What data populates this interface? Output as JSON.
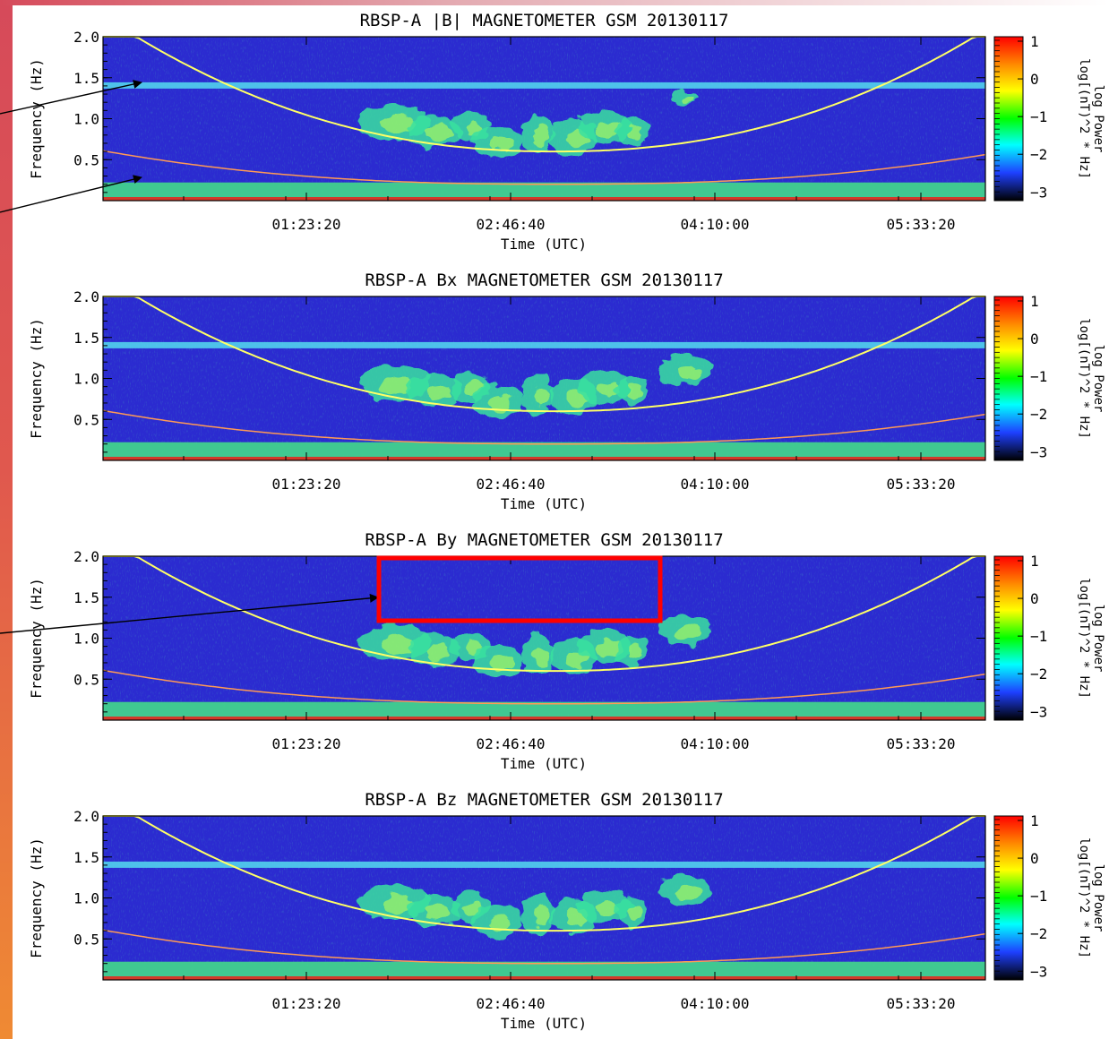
{
  "colors": {
    "background": "#2b2bd0",
    "model_curve_upper": "#ffff66",
    "model_curve_lower": "#ff9a55",
    "band_line": "#55dcef",
    "bottom_band": "#43d98a",
    "highlight_box": "#ff0000",
    "arrow": "#000000"
  },
  "colorbar": {
    "ticks": [
      "1",
      "0",
      "−1",
      "−2",
      "−3"
    ],
    "label": "log Power",
    "units": "log[(nT)^2 * Hz]",
    "stops": [
      "#ff0000",
      "#ff8a00",
      "#ffff00",
      "#00ff00",
      "#00ffff",
      "#1e40ff",
      "#000000"
    ]
  },
  "chart_data": [
    {
      "type": "heatmap",
      "title": "RBSP-A |B| MAGNETOMETER GSM 20130117",
      "xlabel": "Time (UTC)",
      "ylabel": "Frequency (Hz)",
      "x_ticks": [
        "01:23:20",
        "02:46:40",
        "04:10:00",
        "05:33:20"
      ],
      "y_ticks": [
        "2.0",
        "1.5",
        "1.0",
        "0.5"
      ],
      "ylim": [
        0,
        2.0
      ]
    },
    {
      "type": "heatmap",
      "title": "RBSP-A Bx MAGNETOMETER GSM 20130117",
      "xlabel": "Time (UTC)",
      "ylabel": "Frequency (Hz)",
      "x_ticks": [
        "01:23:20",
        "02:46:40",
        "04:10:00",
        "05:33:20"
      ],
      "y_ticks": [
        "2.0",
        "1.5",
        "1.0",
        "0.5"
      ],
      "ylim": [
        0,
        2.0
      ]
    },
    {
      "type": "heatmap",
      "title": "RBSP-A By MAGNETOMETER GSM 20130117",
      "xlabel": "Time (UTC)",
      "ylabel": "Frequency (Hz)",
      "x_ticks": [
        "01:23:20",
        "02:46:40",
        "04:10:00",
        "05:33:20"
      ],
      "y_ticks": [
        "2.0",
        "1.5",
        "1.0",
        "0.5"
      ],
      "ylim": [
        0,
        2.0
      ]
    },
    {
      "type": "heatmap",
      "title": "RBSP-A Bz MAGNETOMETER GSM 20130117",
      "xlabel": "Time (UTC)",
      "ylabel": "Frequency (Hz)",
      "x_ticks": [
        "01:23:20",
        "02:46:40",
        "04:10:00",
        "05:33:20"
      ],
      "y_ticks": [
        "2.0",
        "1.5",
        "1.0",
        "0.5"
      ],
      "ylim": [
        0,
        2.0
      ]
    }
  ]
}
